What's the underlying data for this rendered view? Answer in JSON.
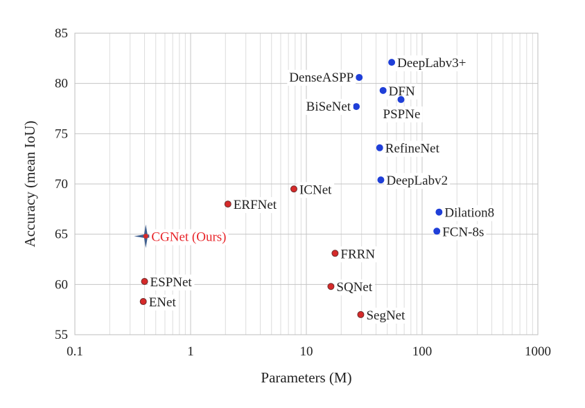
{
  "chart_data": {
    "type": "scatter",
    "xlabel": "Parameters (M)",
    "ylabel": "Accuracy (mean IoU)",
    "xscale": "log",
    "xlim": [
      0.1,
      1000
    ],
    "ylim": [
      55,
      85
    ],
    "xticks": [
      "0.1",
      "1",
      "10",
      "100",
      "1000"
    ],
    "yticks": [
      "55",
      "60",
      "65",
      "70",
      "75",
      "80",
      "85"
    ],
    "grid": true,
    "colors": {
      "blue": "#1f3fd8",
      "red": "#d62a2a",
      "red_label": "#e8262b",
      "star": "#3f5f8f"
    },
    "points": [
      {
        "name": "DeepLabv3+",
        "x": 54.6,
        "y": 82.1,
        "color": "blue",
        "label_pos": "right"
      },
      {
        "name": "DenseASPP",
        "x": 28.6,
        "y": 80.6,
        "color": "blue",
        "label_pos": "left"
      },
      {
        "name": "DFN",
        "x": 46,
        "y": 79.3,
        "color": "blue",
        "label_pos": "right"
      },
      {
        "name": "PSPNe",
        "x": 65.7,
        "y": 78.4,
        "color": "blue",
        "label_pos": "below"
      },
      {
        "name": "BiSeNet",
        "x": 27,
        "y": 77.7,
        "color": "blue",
        "label_pos": "left"
      },
      {
        "name": "RefineNet",
        "x": 43,
        "y": 73.6,
        "color": "blue",
        "label_pos": "right"
      },
      {
        "name": "DeepLabv2",
        "x": 44,
        "y": 70.4,
        "color": "blue",
        "label_pos": "right"
      },
      {
        "name": "Dilation8",
        "x": 140,
        "y": 67.2,
        "color": "blue",
        "label_pos": "right"
      },
      {
        "name": "FCN-8s",
        "x": 134,
        "y": 65.3,
        "color": "blue",
        "label_pos": "right"
      },
      {
        "name": "ICNet",
        "x": 7.8,
        "y": 69.5,
        "color": "red",
        "label_pos": "right"
      },
      {
        "name": "ERFNet",
        "x": 2.1,
        "y": 68,
        "color": "red",
        "label_pos": "right"
      },
      {
        "name": "CGNet (Ours)",
        "x": 0.41,
        "y": 64.8,
        "color": "red",
        "label_pos": "right",
        "marker": "star",
        "highlight": true
      },
      {
        "name": "FRRN",
        "x": 17.7,
        "y": 63.1,
        "color": "red",
        "label_pos": "right"
      },
      {
        "name": "ESPNet",
        "x": 0.4,
        "y": 60.3,
        "color": "red",
        "label_pos": "right"
      },
      {
        "name": "SQNet",
        "x": 16.3,
        "y": 59.8,
        "color": "red",
        "label_pos": "right"
      },
      {
        "name": "ENet",
        "x": 0.39,
        "y": 58.3,
        "color": "red",
        "label_pos": "right"
      },
      {
        "name": "SegNet",
        "x": 29.5,
        "y": 57,
        "color": "red",
        "label_pos": "right"
      }
    ]
  }
}
